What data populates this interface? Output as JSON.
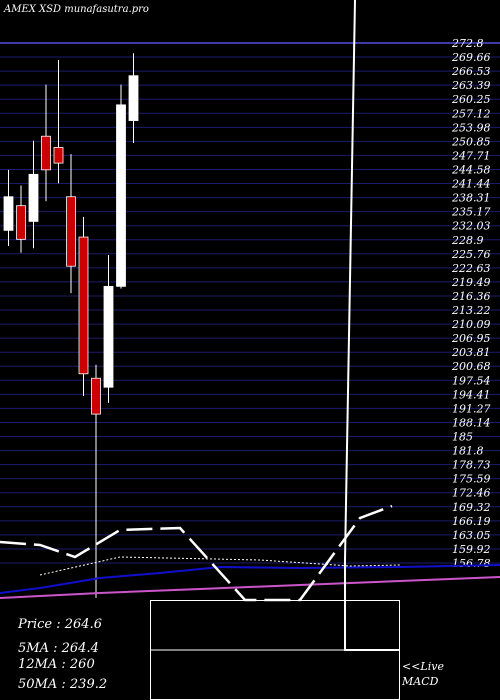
{
  "header": {
    "title": "AMEX  XSD munafasutra.pro"
  },
  "info": {
    "price_label": "Price   :",
    "price": "264.6",
    "ma5_label": "5MA :",
    "ma5": "264.4",
    "ma12_label": "12MA :",
    "ma12": "260",
    "ma50_label": "50MA :",
    "ma50": "239.2"
  },
  "macd_label_1": "<<Live",
  "macd_label_2": "MACD",
  "colors": {
    "background": "#000000",
    "grid": "#1c1c6e",
    "up": "#ffffff",
    "down": "#cc0000",
    "ma_blue": "#1010cc",
    "ma_magenta": "#cc55cc"
  },
  "chart_data": {
    "type": "candlestick",
    "title": "AMEX  XSD munafasutra.pro",
    "ylim": [
      156.78,
      272.8
    ],
    "y_ticks": [
      "272.8",
      "269.66",
      "266.53",
      "263.39",
      "260.25",
      "257.12",
      "253.98",
      "250.85",
      "247.71",
      "244.58",
      "241.44",
      "238.31",
      "235.17",
      "232.03",
      "228.9",
      "225.76",
      "222.63",
      "219.49",
      "216.36",
      "213.22",
      "210.09",
      "206.95",
      "203.81",
      "200.68",
      "197.54",
      "194.41",
      "191.27",
      "188.14",
      "185",
      "181.8",
      "178.73",
      "175.59",
      "172.46",
      "169.32",
      "166.19",
      "163.05",
      "159.92",
      "156.78"
    ],
    "candles": [
      {
        "open": 231.0,
        "close": 238.5,
        "high": 244.5,
        "low": 227.5
      },
      {
        "open": 236.5,
        "close": 229.0,
        "high": 241.0,
        "low": 226.0
      },
      {
        "open": 233.0,
        "close": 243.5,
        "high": 251.0,
        "low": 227.0
      },
      {
        "open": 252.0,
        "close": 244.5,
        "high": 263.5,
        "low": 237.5
      },
      {
        "open": 249.5,
        "close": 246.0,
        "high": 269.0,
        "low": 241.5
      },
      {
        "open": 238.5,
        "close": 223.0,
        "high": 248.0,
        "low": 217.0
      },
      {
        "open": 229.5,
        "close": 199.0,
        "high": 234.0,
        "low": 194.0
      },
      {
        "open": 198.0,
        "close": 190.0,
        "high": 201.0,
        "low": 149.0
      },
      {
        "open": 196.0,
        "close": 218.5,
        "high": 225.5,
        "low": 192.5
      },
      {
        "open": 218.5,
        "close": 259.0,
        "high": 263.5,
        "low": 218.0
      },
      {
        "open": 255.5,
        "close": 265.5,
        "high": 270.5,
        "low": 250.5
      }
    ]
  }
}
